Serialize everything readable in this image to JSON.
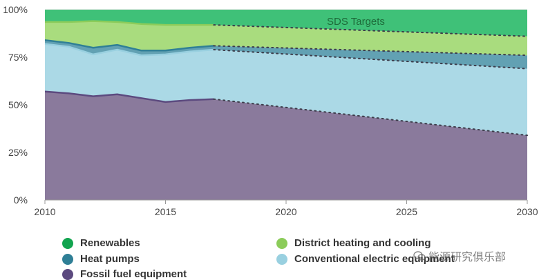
{
  "chart_data": {
    "type": "area",
    "stacked": true,
    "percent": true,
    "x": [
      2010,
      2011,
      2012,
      2013,
      2014,
      2015,
      2016,
      2017,
      2030
    ],
    "projection_start": 2017,
    "annotation": "SDS Targets",
    "xlim": [
      2010,
      2030
    ],
    "ylim": [
      0,
      100
    ],
    "x_ticks": [
      2010,
      2015,
      2020,
      2025,
      2030
    ],
    "y_ticks": [
      0,
      25,
      50,
      75,
      100
    ],
    "y_tick_labels": [
      "0%",
      "25%",
      "50%",
      "75%",
      "100%"
    ],
    "grid": "horizontal",
    "legend_position": "bottom",
    "series": [
      {
        "name": "Fossil fuel equipment",
        "color": "#5c4a7f",
        "fill": "#8a7a9c",
        "values": [
          57,
          56,
          54.5,
          55.5,
          53.5,
          51.5,
          52.5,
          53,
          34
        ]
      },
      {
        "name": "Conventional electric equipment",
        "color": "#99d0e0",
        "fill": "#abd9e6",
        "values": [
          25,
          24.5,
          22,
          23.5,
          22.5,
          25,
          25.5,
          26,
          35
        ]
      },
      {
        "name": "Heat pumps",
        "color": "#2f7f96",
        "fill": "#62a1b3",
        "values": [
          2,
          2,
          3.5,
          2.5,
          2.5,
          2,
          2,
          2,
          7
        ]
      },
      {
        "name": "District heating and cooling",
        "color": "#8ccc5a",
        "fill": "#a9dc7e",
        "values": [
          9.5,
          11,
          14,
          12,
          14,
          13.5,
          12,
          11,
          10
        ]
      },
      {
        "name": "Renewables",
        "color": "#12a44f",
        "fill": "#3fc178",
        "values": [
          6.5,
          6.5,
          6,
          6.5,
          7.5,
          8,
          8,
          8,
          14
        ]
      }
    ]
  },
  "legend": {
    "items": [
      {
        "label": "Renewables",
        "color": "#12a44f"
      },
      {
        "label": "District heating and cooling",
        "color": "#8ccc5a"
      },
      {
        "label": "Heat pumps",
        "color": "#2f7f96"
      },
      {
        "label": "Conventional electric equipment",
        "color": "#99d0e0"
      },
      {
        "label": "Fossil fuel equipment",
        "color": "#5c4a7f"
      }
    ]
  },
  "watermark": {
    "text": "能源研究俱乐部"
  }
}
